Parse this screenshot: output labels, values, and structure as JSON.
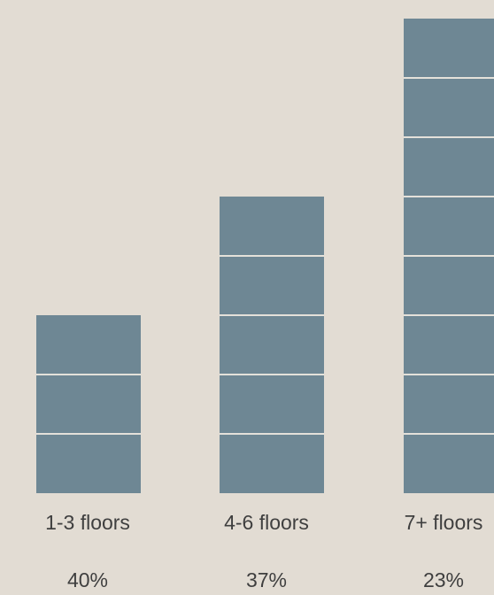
{
  "chart_data": {
    "type": "bar",
    "categories": [
      "1-3 floors",
      "4-6 floors",
      "7+ floors"
    ],
    "floors": [
      3,
      5,
      8
    ],
    "percent_labels": [
      "40%",
      "37%",
      "23%"
    ],
    "values": [
      40,
      37,
      23
    ],
    "title": "",
    "xlabel": "",
    "ylabel": "",
    "grid": false,
    "legend": "none",
    "bar_color": "#6e8794",
    "separator_color": "#e4e1da"
  }
}
